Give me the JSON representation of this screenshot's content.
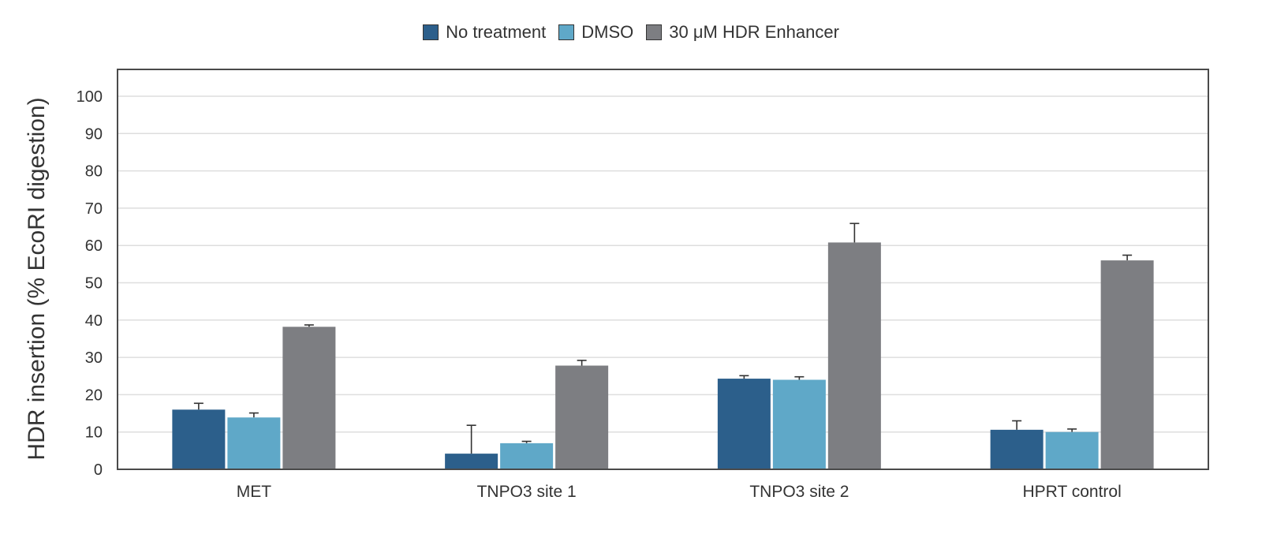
{
  "chart_data": {
    "type": "bar",
    "title": "",
    "xlabel": "",
    "ylabel": "HDR insertion (% EcoRI digestion)",
    "ylim": [
      0,
      107
    ],
    "yticks": [
      0,
      10,
      20,
      30,
      40,
      50,
      60,
      70,
      80,
      90,
      100
    ],
    "grid": true,
    "legend_position": "top-center",
    "categories": [
      "MET",
      "TNPO3 site 1",
      "TNPO3 site 2",
      "HPRT control"
    ],
    "series": [
      {
        "name": "No treatment",
        "color": "#2c5f8b",
        "values": [
          16,
          4.2,
          24.3,
          10.6
        ],
        "errors": [
          1.7,
          7.6,
          0.8,
          2.4
        ]
      },
      {
        "name": "DMSO",
        "color": "#5fa8c8",
        "values": [
          13.9,
          7.0,
          24.0,
          10.0
        ],
        "errors": [
          1.2,
          0.5,
          0.8,
          0.8
        ]
      },
      {
        "name": "30 μM HDR Enhancer",
        "color": "#7d7e82",
        "values": [
          38.2,
          27.8,
          60.8,
          56.0
        ],
        "errors": [
          0.5,
          1.4,
          5.1,
          1.4
        ]
      }
    ]
  }
}
